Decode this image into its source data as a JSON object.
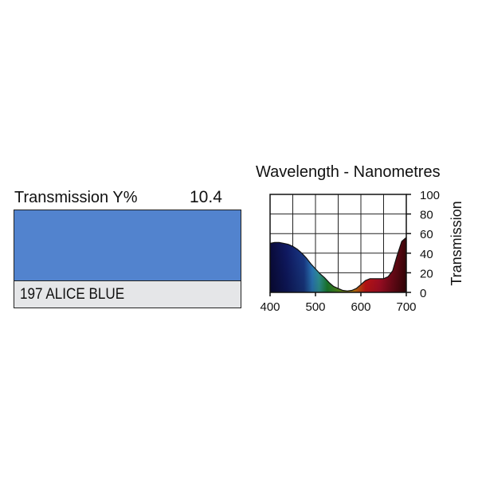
{
  "filter": {
    "transmission_label": "Transmission Y%",
    "transmission_value": "10.4",
    "swatch_color": "#5283ce",
    "name": "197 ALICE BLUE",
    "name_bar_color": "#e5e6e8"
  },
  "chart_data": {
    "type": "area",
    "title": "Wavelength - Nanometres",
    "xlabel": "",
    "ylabel": "Transmission",
    "xlim": [
      400,
      700
    ],
    "ylim": [
      0,
      100
    ],
    "x_ticks": [
      400,
      500,
      600,
      700
    ],
    "y_ticks": [
      0,
      20,
      40,
      60,
      80,
      100
    ],
    "grid": true,
    "series": [
      {
        "x": [
          400,
          410,
          420,
          430,
          440,
          450,
          460,
          470,
          480,
          490,
          500,
          510,
          520,
          530,
          540,
          550,
          560,
          570,
          580,
          590,
          600,
          610,
          620,
          630,
          640,
          650,
          660,
          670,
          680,
          690,
          700
        ],
        "values": [
          50,
          51,
          51,
          50,
          49,
          47,
          44,
          40,
          35,
          29,
          24,
          19,
          15,
          10,
          6,
          4,
          2,
          1.5,
          2,
          4,
          8,
          12,
          14,
          14,
          14,
          14,
          16,
          22,
          38,
          52,
          56
        ]
      }
    ]
  }
}
